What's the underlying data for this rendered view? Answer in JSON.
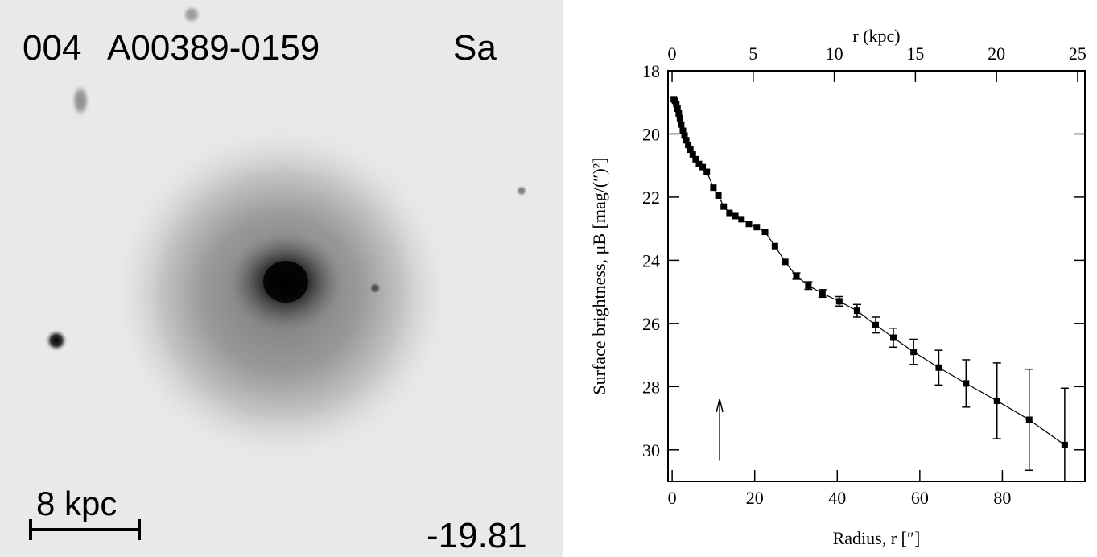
{
  "panel": {
    "id": "004",
    "name": "A00389-0159",
    "morphology": "Sa",
    "scale_label": "8 kpc",
    "magnitude": "-19.81"
  },
  "chart_data": {
    "type": "profile",
    "xlabel": "Radius, r   [″]",
    "ylabel": "Surface brightness, μB [mag/(″)²]",
    "x2label": "r (kpc)",
    "xlim": [
      -1,
      100
    ],
    "xticks": [
      0,
      20,
      40,
      60,
      80
    ],
    "x2lim": [
      -0.25,
      25.45
    ],
    "x2ticks": [
      0,
      5,
      10,
      15,
      20,
      25
    ],
    "ylim": [
      31,
      18
    ],
    "yticks": [
      18,
      20,
      22,
      24,
      26,
      28,
      30
    ],
    "color": "#000000",
    "x": [
      0.4,
      0.7,
      1.0,
      1.3,
      1.6,
      1.9,
      2.2,
      2.6,
      3.0,
      3.4,
      3.9,
      4.4,
      5.0,
      5.7,
      6.5,
      7.4,
      8.4,
      10.0,
      11.2,
      12.5,
      13.9,
      15.3,
      16.8,
      18.6,
      20.5,
      22.5,
      24.9,
      27.4,
      30.1,
      33.0,
      36.4,
      40.5,
      44.8,
      49.3,
      53.6,
      58.5,
      64.6,
      71.2,
      78.7,
      86.5,
      95.1
    ],
    "values": [
      18.9,
      18.95,
      19.05,
      19.2,
      19.35,
      19.5,
      19.7,
      19.9,
      20.05,
      20.2,
      20.35,
      20.5,
      20.65,
      20.8,
      20.95,
      21.05,
      21.2,
      21.7,
      21.95,
      22.3,
      22.5,
      22.6,
      22.7,
      22.85,
      22.95,
      23.1,
      23.55,
      24.05,
      24.5,
      24.8,
      25.05,
      25.3,
      25.6,
      26.05,
      26.45,
      26.9,
      27.4,
      27.9,
      28.45,
      29.05,
      29.85
    ],
    "errors": [
      null,
      null,
      null,
      null,
      null,
      null,
      null,
      null,
      null,
      null,
      null,
      null,
      null,
      null,
      null,
      null,
      null,
      null,
      null,
      null,
      null,
      null,
      null,
      null,
      null,
      null,
      null,
      null,
      0.1,
      0.12,
      0.12,
      0.15,
      0.2,
      0.25,
      0.3,
      0.4,
      0.55,
      0.75,
      1.2,
      1.6,
      1.8
    ],
    "arrow": {
      "x": 11.5,
      "y_from": 30.35,
      "y_to": 28.4
    }
  }
}
